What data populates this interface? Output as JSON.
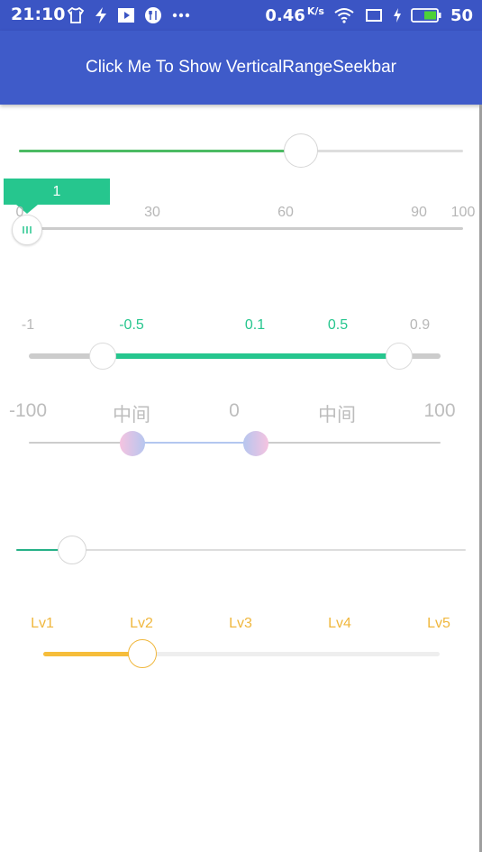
{
  "status_bar": {
    "time": "21:10",
    "icons_left": [
      "tshirt-icon",
      "flash-icon",
      "play-icon",
      "restaurant-icon",
      "more-dots-icon"
    ],
    "network_speed": "0.46",
    "network_speed_unit": "K/s",
    "icons_right": [
      "wifi-icon",
      "screen-icon",
      "charging-icon",
      "battery-icon"
    ],
    "battery_level": "50"
  },
  "app_bar": {
    "title": "Click Me To Show VerticalRangeSeekbar"
  },
  "seekbar1": {
    "progress": 0.63,
    "color_active": "#4cbb63",
    "color_track": "#dddddd"
  },
  "seekbar2": {
    "indicator": "1",
    "tick_labels": [
      "0",
      "30",
      "60",
      "90",
      "100"
    ],
    "color_indicator": "#26c68e"
  },
  "seekbar3": {
    "labels": [
      "-1",
      "-0.5",
      "0.1",
      "0.5",
      "0.9"
    ],
    "range_min": -1,
    "range_max": 0.9,
    "color_active": "#26c68e"
  },
  "seekbar4": {
    "labels": [
      "-100",
      "中间",
      "0",
      "中间",
      "100"
    ],
    "range_min": -100,
    "range_max": 100,
    "color_active": "#b3c7f0"
  },
  "seekbar5": {
    "progress": 0.13,
    "color_active": "#26b187"
  },
  "seekbar6": {
    "labels": [
      "Lv1",
      "Lv2",
      "Lv3",
      "Lv4",
      "Lv5"
    ],
    "selected": "Lv2",
    "color_active": "#f6bd3a"
  }
}
